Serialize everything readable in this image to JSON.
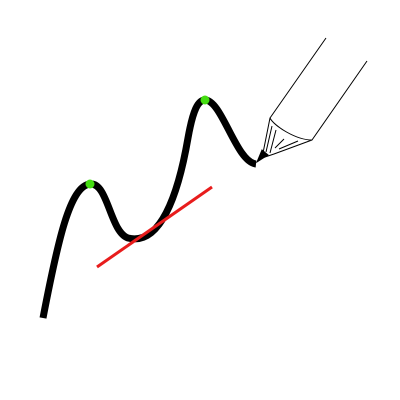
{
  "diagram": {
    "curve_color": "#000000",
    "maximum_marker_color": "#44dd11",
    "tangent_line_color": "#e81c1c",
    "pencil_color": "#ffffff",
    "pencil_outline_color": "#000000",
    "marked_points": [
      "local-maximum-left",
      "local-maximum-right"
    ],
    "tangent_at": "curve-minimum",
    "icons": [
      "pencil-icon"
    ]
  }
}
